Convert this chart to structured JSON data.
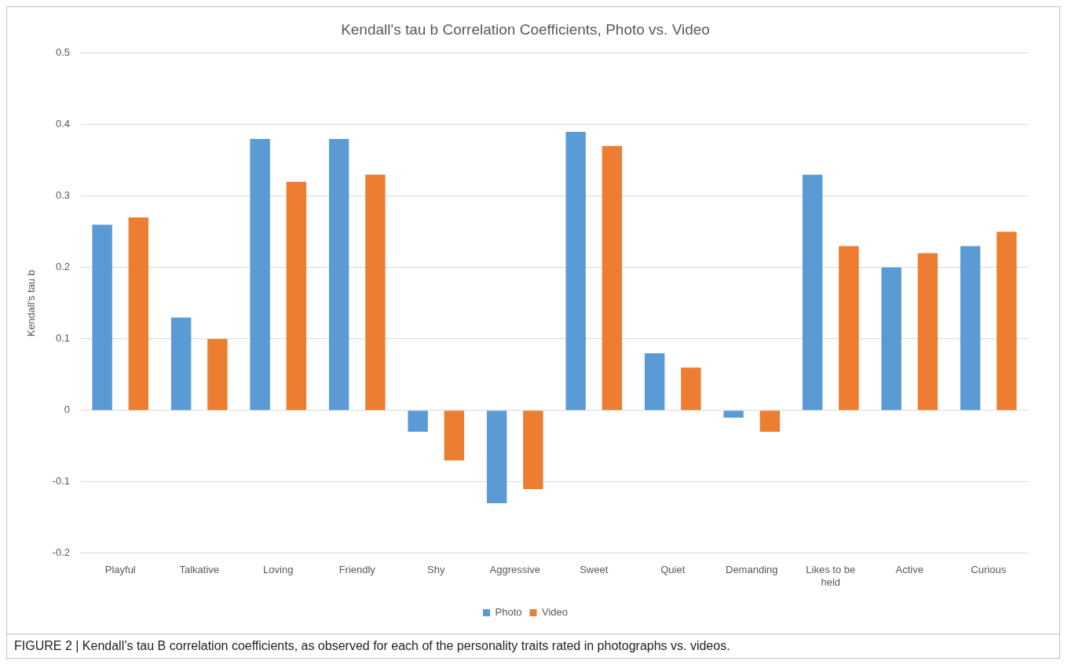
{
  "chart_data": {
    "type": "bar",
    "title": "Kendall's tau b Correlation Coefficients, Photo vs. Video",
    "ylabel": "Kendall's tau b",
    "categories": [
      "Playful",
      "Talkative",
      "Loving",
      "Friendly",
      "Shy",
      "Aggressive",
      "Sweet",
      "Quiet",
      "Demanding",
      "Likes to be held",
      "Active",
      "Curious"
    ],
    "series": [
      {
        "name": "Photo",
        "color": "#5b9bd5",
        "values": [
          0.26,
          0.13,
          0.38,
          0.38,
          -0.03,
          -0.13,
          0.39,
          0.08,
          -0.01,
          0.33,
          0.2,
          0.23
        ]
      },
      {
        "name": "Video",
        "color": "#ed7d31",
        "values": [
          0.27,
          0.1,
          0.32,
          0.33,
          -0.07,
          -0.11,
          0.37,
          0.06,
          -0.03,
          0.23,
          0.22,
          0.25
        ]
      }
    ],
    "ylim": [
      -0.2,
      0.5
    ],
    "yticks": [
      -0.2,
      -0.1,
      0,
      0.1,
      0.2,
      0.3,
      0.4,
      0.5
    ],
    "grid": "y",
    "legend": "bottom",
    "annotations": [
      "FIGURE 2 | Kendall’s tau B correlation coefficients, as observed for each of the personality traits rated in photographs vs. videos."
    ]
  }
}
